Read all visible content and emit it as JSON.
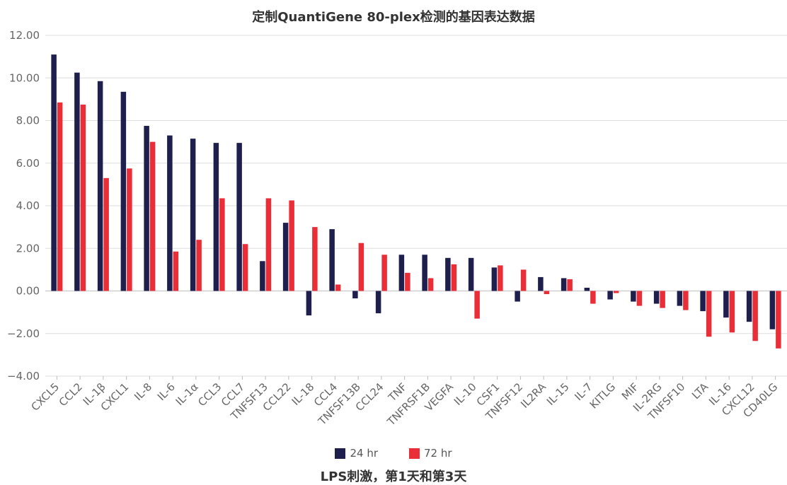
{
  "chart_data": {
    "type": "bar",
    "title": "定制QuantiGene 80-plex检测的基因表达数据",
    "xlabel": "LPS刺激，第1天和第3天",
    "ylabel": "",
    "ylim": [
      -4,
      12
    ],
    "yticks": [
      "−4.00",
      "−2.00",
      "0.00",
      "2.00",
      "4.00",
      "6.00",
      "8.00",
      "10.00",
      "12.00"
    ],
    "grid": true,
    "legend_position": "bottom",
    "categories": [
      "CXCL5",
      "CCL2",
      "IL-1β",
      "CXCL1",
      "IL-8",
      "IL-6",
      "IL-1α",
      "CCL3",
      "CCL7",
      "TNFSF13",
      "CCL22",
      "IL-18",
      "CCL4",
      "TNFSF13B",
      "CCL24",
      "TNF",
      "TNFRSF1B",
      "VEGFA",
      "IL-10",
      "CSF1",
      "TNFSF12",
      "IL2RA",
      "IL-15",
      "IL-7",
      "KITLG",
      "MIF",
      "IL-2RG",
      "TNFSF10",
      "LTA",
      "IL-16",
      "CXCL12",
      "CD40LG"
    ],
    "series": [
      {
        "name": "24 hr",
        "color": "#1e1f4d",
        "values": [
          11.1,
          10.25,
          9.85,
          9.35,
          7.75,
          7.3,
          7.15,
          6.95,
          6.95,
          1.4,
          3.2,
          -1.15,
          2.9,
          -0.35,
          -1.05,
          1.7,
          1.7,
          1.55,
          1.55,
          1.1,
          -0.5,
          0.65,
          0.6,
          0.15,
          -0.4,
          -0.5,
          -0.6,
          -0.7,
          -0.95,
          -1.25,
          -1.45,
          -1.8
        ]
      },
      {
        "name": "72 hr",
        "color": "#ea2e37",
        "values": [
          8.85,
          8.75,
          5.3,
          5.75,
          7.0,
          1.85,
          2.4,
          4.35,
          2.2,
          4.35,
          4.25,
          3.0,
          0.3,
          2.25,
          1.7,
          0.85,
          0.6,
          1.25,
          -1.3,
          1.2,
          1.0,
          -0.15,
          0.55,
          -0.6,
          -0.1,
          -0.7,
          -0.8,
          -0.9,
          -2.15,
          -1.95,
          -2.35,
          -2.7
        ]
      }
    ]
  }
}
